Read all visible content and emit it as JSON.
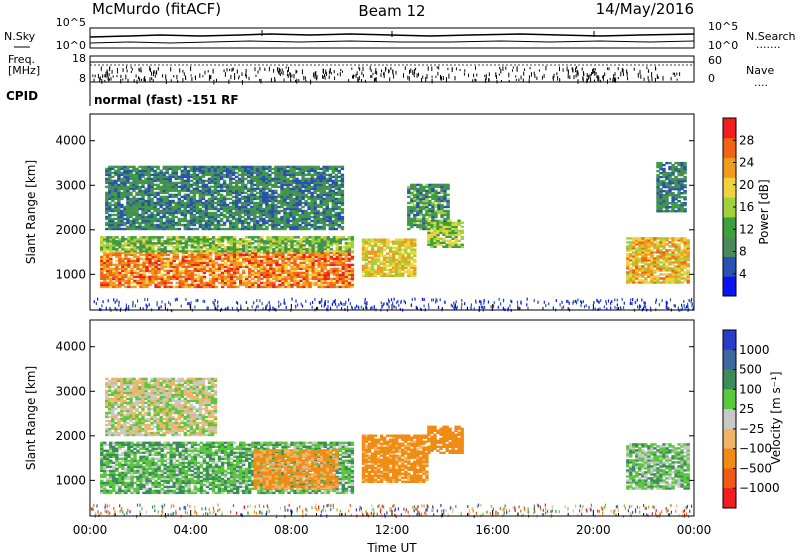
{
  "header": {
    "station": "McMurdo (fitACF)",
    "beam": "Beam 12",
    "date": "14/May/2016"
  },
  "top_panel": {
    "left_label": "N.Sky",
    "right_label": "N.Search",
    "right_dots": ".......",
    "tick_top_left": "10^5",
    "tick_bottom_left": "10^0",
    "tick_top_right": "10^5",
    "tick_bottom_right": "10^0"
  },
  "freq_panel": {
    "label_line1": "Freq.",
    "label_line2": "[MHz]",
    "tick_top_left": "18",
    "tick_bottom_left": "8",
    "tick_top_right": "60",
    "tick_bottom_right": "0",
    "right_label": "Nave",
    "right_dots": "....",
    "cpid_label": "CPID",
    "cpid_text": "normal (fast) -151 RF"
  },
  "colors": {
    "power_scale": [
      "#0a14f0",
      "#2a50b4",
      "#4a8a5a",
      "#3ca03c",
      "#a0d23c",
      "#f0d23c",
      "#f09a1e",
      "#f06414",
      "#f01e1e"
    ],
    "velocity_scale": [
      "#f01e1e",
      "#f05a14",
      "#f08c14",
      "#f0b464",
      "#c8c8c8",
      "#5ac83c",
      "#3c8c5a",
      "#3c6aa0",
      "#2a3cc8"
    ]
  },
  "chart_data": [
    {
      "type": "heatmap",
      "panel": "power",
      "xlabel": "Time UT",
      "ylabel": "Slant Range [km]",
      "xlim": [
        0,
        24
      ],
      "ylim": [
        200,
        4600
      ],
      "x_ticks": [
        "00:00",
        "04:00",
        "08:00",
        "12:00",
        "16:00",
        "20:00",
        "00:00"
      ],
      "y_ticks": [
        "1000",
        "2000",
        "3000",
        "4000"
      ],
      "colorbar": {
        "label": "Power [dB]",
        "ticks": [
          "4",
          "8",
          "12",
          "16",
          "20",
          "24",
          "28"
        ],
        "range": [
          0,
          32
        ]
      },
      "echo_regions": [
        {
          "t_start": 0.4,
          "t_end": 10.4,
          "r_low": 700,
          "r_high": 1500,
          "value_db": 26
        },
        {
          "t_start": 0.4,
          "t_end": 10.4,
          "r_low": 1500,
          "r_high": 1850,
          "value_db": 14
        },
        {
          "t_start": 10.8,
          "t_end": 12.9,
          "r_low": 950,
          "r_high": 1800,
          "value_db": 20
        },
        {
          "t_start": 12.6,
          "t_end": 14.2,
          "r_low": 2000,
          "r_high": 3000,
          "value_db": 10
        },
        {
          "t_start": 13.4,
          "t_end": 14.8,
          "r_low": 1600,
          "r_high": 2200,
          "value_db": 16
        },
        {
          "t_start": 21.3,
          "t_end": 23.8,
          "r_low": 800,
          "r_high": 1800,
          "value_db": 22
        },
        {
          "t_start": 22.5,
          "t_end": 23.6,
          "r_low": 2400,
          "r_high": 3500,
          "value_db": 8
        },
        {
          "t_start": 0.6,
          "t_end": 10.0,
          "r_low": 2000,
          "r_high": 3400,
          "value_db": 8
        }
      ]
    },
    {
      "type": "heatmap",
      "panel": "velocity",
      "xlabel": "Time UT",
      "ylabel": "Slant Range [km]",
      "xlim": [
        0,
        24
      ],
      "ylim": [
        200,
        4600
      ],
      "x_ticks": [
        "00:00",
        "04:00",
        "08:00",
        "12:00",
        "16:00",
        "20:00",
        "00:00"
      ],
      "y_ticks": [
        "1000",
        "2000",
        "3000",
        "4000"
      ],
      "colorbar": {
        "label": "Velocity [m s⁻¹]",
        "ticks": [
          "1000",
          "500",
          "100",
          "25",
          "−25",
          "−100",
          "−500",
          "−1000"
        ],
        "range": [
          -1000,
          1000
        ]
      },
      "echo_regions": [
        {
          "t_start": 0.4,
          "t_end": 10.4,
          "r_low": 700,
          "r_high": 1850,
          "value_ms": 80
        },
        {
          "t_start": 6.5,
          "t_end": 9.8,
          "r_low": 800,
          "r_high": 1700,
          "value_ms": -120
        },
        {
          "t_start": 10.8,
          "t_end": 13.4,
          "r_low": 950,
          "r_high": 2000,
          "value_ms": -150
        },
        {
          "t_start": 13.4,
          "t_end": 14.8,
          "r_low": 1600,
          "r_high": 2200,
          "value_ms": -200
        },
        {
          "t_start": 21.3,
          "t_end": 23.8,
          "r_low": 800,
          "r_high": 1800,
          "value_ms": 60
        },
        {
          "t_start": 0.6,
          "t_end": 5.0,
          "r_low": 2000,
          "r_high": 3300,
          "value_ms": 0
        }
      ]
    }
  ]
}
